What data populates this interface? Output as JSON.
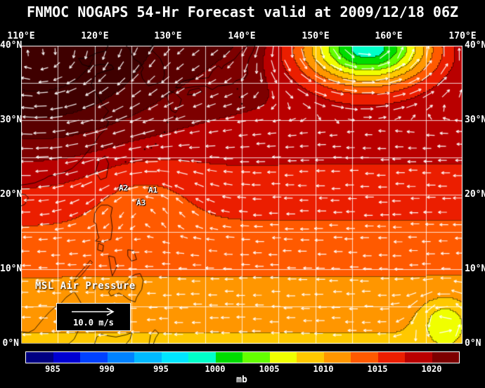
{
  "title": "FNMOC NOGAPS 54-Hr Forecast valid at 2009/12/18 06Z",
  "axes": {
    "lon_ticks": [
      "110°E",
      "120°E",
      "130°E",
      "140°E",
      "150°E",
      "160°E",
      "170°E"
    ],
    "lat_ticks": [
      "40°N",
      "30°N",
      "20°N",
      "10°N",
      "0°N"
    ]
  },
  "map": {
    "field_label": "MSL Air Pressure",
    "wind_legend_speed": "10.0 m/s",
    "annotations": [
      {
        "label": "A2"
      },
      {
        "label": "A1"
      },
      {
        "label": "A3"
      }
    ]
  },
  "colorbar": {
    "unit": "mb",
    "tick_labels": [
      "985",
      "990",
      "995",
      "1000",
      "1005",
      "1010",
      "1015",
      "1020"
    ],
    "colors": [
      "#000082",
      "#0000d2",
      "#0041ff",
      "#0082ff",
      "#00b9ff",
      "#00e6ff",
      "#00ffc8",
      "#00dc00",
      "#64ff00",
      "#f0ff00",
      "#ffc800",
      "#ff9600",
      "#ff5a00",
      "#eb1e00",
      "#b90000",
      "#7d0000"
    ],
    "overflow_colors": [
      "#5a0000",
      "#3f0000"
    ]
  },
  "chart_data": {
    "type": "heatmap",
    "title": "FNMOC NOGAPS 54-Hr Forecast valid at 2009/12/18 06Z",
    "field": "Mean sea level air pressure (mb) with surface wind vectors",
    "x_range_deg_east": [
      110,
      170
    ],
    "y_range_deg_north": [
      0,
      40
    ],
    "grid_interval_deg": 5,
    "colorbar_mb": {
      "min": 982.5,
      "max": 1022.5,
      "step_per_segment": 2.5,
      "ticks": [
        985,
        990,
        995,
        1000,
        1005,
        1010,
        1015,
        1020
      ]
    },
    "wind_reference_m_s": 10.0,
    "features": [
      {
        "name": "extratropical-low",
        "approx_lon_e": 157,
        "approx_lat_n": 39,
        "core_mb": "≈995-1000"
      },
      {
        "name": "continental-high",
        "region": "northwest (Asian continent)",
        "core_mb": ">1020"
      },
      {
        "name": "storm-A2",
        "approx_lon_e": 123.5,
        "approx_lat_n": 21
      },
      {
        "name": "storm-A1",
        "approx_lon_e": 127.5,
        "approx_lat_n": 20.7
      },
      {
        "name": "storm-A3",
        "approx_lon_e": 126,
        "approx_lat_n": 19
      },
      {
        "name": "small-low-swirl",
        "approx_lon_e": 167.5,
        "approx_lat_n": 3,
        "core_mb": "≈1005"
      }
    ]
  }
}
